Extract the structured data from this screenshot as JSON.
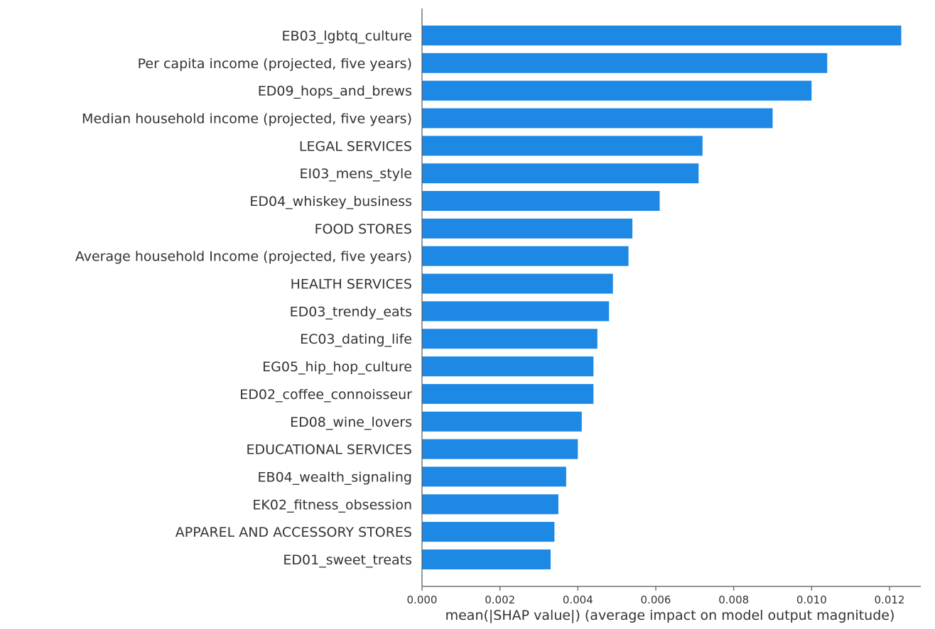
{
  "chart_data": {
    "type": "bar",
    "orientation": "horizontal",
    "title": "",
    "xlabel": "mean(|SHAP value|) (average impact on model output magnitude)",
    "ylabel": "",
    "xlim": [
      0,
      0.013
    ],
    "xticks": [
      "0.000",
      "0.002",
      "0.004",
      "0.006",
      "0.008",
      "0.010",
      "0.012"
    ],
    "bar_color": "#1e88e5",
    "grid": false,
    "categories": [
      "EB03_lgbtq_culture",
      "Per capita income (projected, five years)",
      "ED09_hops_and_brews",
      "Median household income (projected, five years)",
      "LEGAL SERVICES",
      "EI03_mens_style",
      "ED04_whiskey_business",
      "FOOD STORES",
      "Average household Income (projected, five years)",
      "HEALTH SERVICES",
      "ED03_trendy_eats",
      "EC03_dating_life",
      "EG05_hip_hop_culture",
      "ED02_coffee_connoisseur",
      "ED08_wine_lovers",
      "EDUCATIONAL SERVICES",
      "EB04_wealth_signaling",
      "EK02_fitness_obsession",
      "APPAREL AND ACCESSORY STORES",
      "ED01_sweet_treats"
    ],
    "values": [
      0.0123,
      0.0104,
      0.01,
      0.009,
      0.0072,
      0.0071,
      0.0061,
      0.0054,
      0.0053,
      0.0049,
      0.0048,
      0.0045,
      0.0044,
      0.0044,
      0.0041,
      0.004,
      0.0037,
      0.0035,
      0.0034,
      0.0033
    ]
  }
}
